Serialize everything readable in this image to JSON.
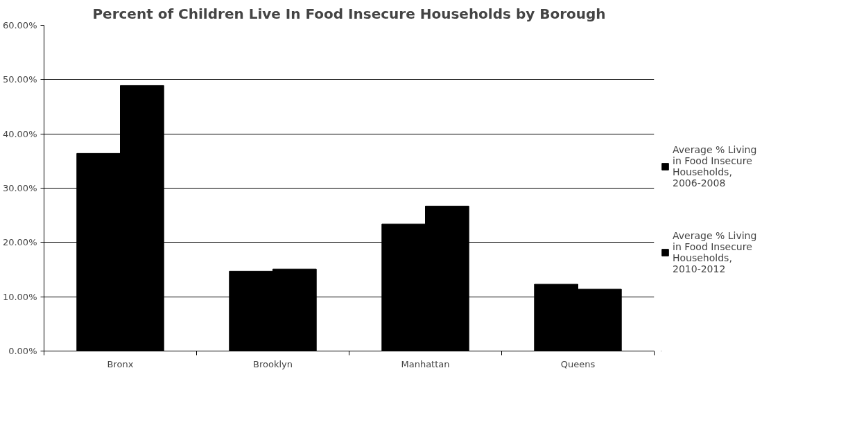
{
  "chart_data": {
    "type": "bar",
    "title": "Percent of Children Live In Food Insecure Households by Borough",
    "categories": [
      "Bronx",
      "Brooklyn",
      "Manhattan",
      "Queens"
    ],
    "series": [
      {
        "name": "Average % Living in Food Insecure Households, 2006-2008",
        "color": "#000000",
        "values": [
          36.4,
          14.7,
          23.4,
          12.3
        ]
      },
      {
        "name": "Average % Living in Food Insecure Households, 2010-2012",
        "color": "#000000",
        "values": [
          48.9,
          15.1,
          26.7,
          11.4
        ]
      }
    ],
    "ylim": [
      0,
      60
    ],
    "yticks": [
      {
        "value": 0,
        "label": "0.00%"
      },
      {
        "value": 10,
        "label": "10.00%"
      },
      {
        "value": 20,
        "label": "20.00%"
      },
      {
        "value": 30,
        "label": "30.00%"
      },
      {
        "value": 40,
        "label": "40.00%"
      },
      {
        "value": 50,
        "label": "50.00%"
      },
      {
        "value": 60,
        "label": "60.00%"
      }
    ],
    "grid": "y",
    "legend": "right"
  }
}
